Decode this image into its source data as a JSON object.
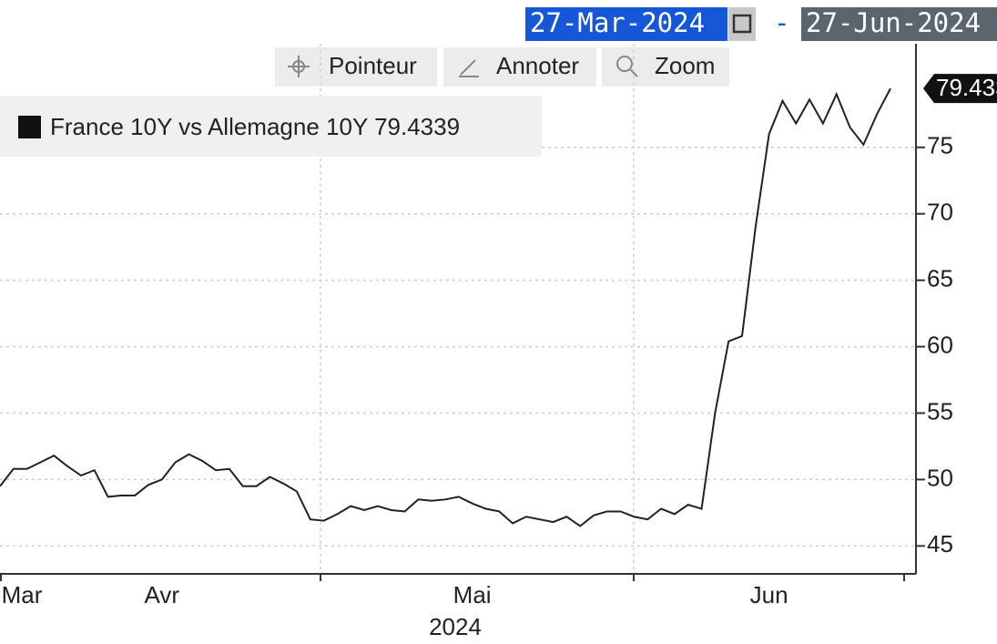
{
  "toolbar": {
    "start_date": "27-Mar-2024",
    "separator": "-",
    "end_date": "27-Jun-2024",
    "buttons": [
      "Pointeur",
      "Annoter",
      "Zoom"
    ]
  },
  "chart_data": {
    "type": "line",
    "x_axis_label": "2024",
    "categories": [
      null,
      "Mar",
      null,
      null,
      null,
      null,
      null,
      null,
      null,
      null,
      null,
      null,
      "Avr",
      null,
      null,
      null,
      null,
      null,
      null,
      null,
      null,
      null,
      null,
      null,
      null,
      null,
      null,
      null,
      null,
      null,
      null,
      null,
      null,
      null,
      null,
      "Mai",
      null,
      null,
      null,
      null,
      null,
      null,
      null,
      null,
      null,
      null,
      null,
      null,
      null,
      null,
      null,
      null,
      null,
      null,
      null,
      null,
      null,
      "Jun",
      null,
      null,
      null,
      null,
      null,
      null,
      null,
      null,
      null
    ],
    "series": [
      {
        "name": "France 10Y vs Allemagne 10Y",
        "color": "#222222",
        "values": [
          49.5,
          50.8,
          50.8,
          51.3,
          51.8,
          51,
          50.3,
          50.7,
          48.7,
          48.8,
          48.8,
          49.6,
          50,
          51.3,
          51.9,
          51.4,
          50.7,
          50.8,
          49.5,
          49.5,
          50.2,
          49.7,
          49.1,
          47,
          46.9,
          47.4,
          48,
          47.7,
          48,
          47.7,
          47.6,
          48.5,
          48.4,
          48.5,
          48.7,
          48.2,
          47.8,
          47.6,
          46.7,
          47.2,
          47,
          46.8,
          47.2,
          46.5,
          47.3,
          47.6,
          47.6,
          47.2,
          47,
          47.8,
          47.4,
          48.1,
          47.8,
          55,
          60.4,
          60.8,
          69,
          76,
          78.5,
          76.8,
          78.6,
          76.8,
          79,
          76.5,
          75.2,
          77.5,
          79.4339
        ]
      }
    ],
    "ylim": [
      42.9,
      82.8
    ],
    "yticks": [
      45,
      50,
      55,
      60,
      65,
      70,
      75
    ],
    "grid": true
  }
}
